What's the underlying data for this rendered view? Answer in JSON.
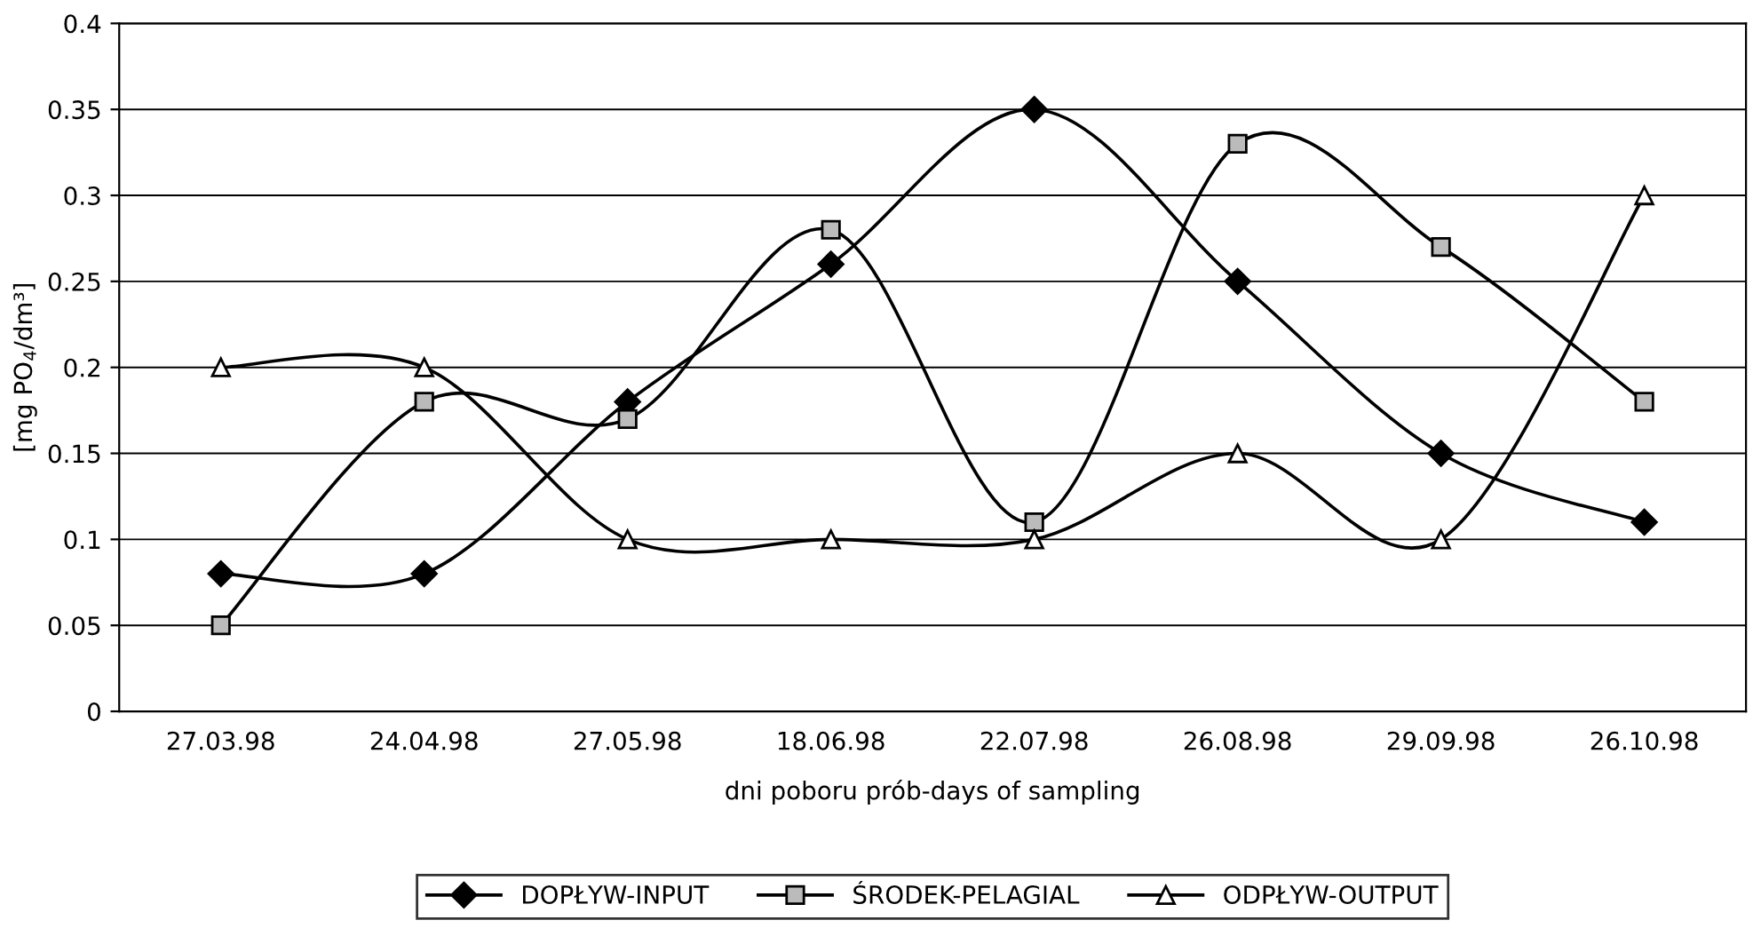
{
  "chart_data": {
    "type": "line",
    "categories": [
      "27.03.98",
      "24.04.98",
      "27.05.98",
      "18.06.98",
      "22.07.98",
      "26.08.98",
      "29.09.98",
      "26.10.98"
    ],
    "series": [
      {
        "name": "DOPŁYW-INPUT",
        "color": "#000000",
        "marker": "diamond",
        "values": [
          0.08,
          0.08,
          0.18,
          0.26,
          0.35,
          0.25,
          0.15,
          0.11
        ]
      },
      {
        "name": "ŚRODEK-PELAGIAL",
        "color": "#000000",
        "marker": "square",
        "values": [
          0.05,
          0.18,
          0.17,
          0.28,
          0.11,
          0.33,
          0.27,
          0.18
        ]
      },
      {
        "name": "ODPŁYW-OUTPUT",
        "color": "#000000",
        "marker": "triangle",
        "values": [
          0.2,
          0.2,
          0.1,
          0.1,
          0.1,
          0.15,
          0.1,
          0.3
        ]
      }
    ],
    "xlabel": "dni poboru prób-days of sampling",
    "ylabel": "[mg PO$_{4}$/dm³]",
    "ylim": [
      0,
      0.4
    ],
    "yticks": [
      0,
      0.05,
      0.1,
      0.15,
      0.2,
      0.25,
      0.3,
      0.35,
      0.4
    ],
    "grid": "y",
    "legend": "bottom",
    "line_style": "solid"
  }
}
